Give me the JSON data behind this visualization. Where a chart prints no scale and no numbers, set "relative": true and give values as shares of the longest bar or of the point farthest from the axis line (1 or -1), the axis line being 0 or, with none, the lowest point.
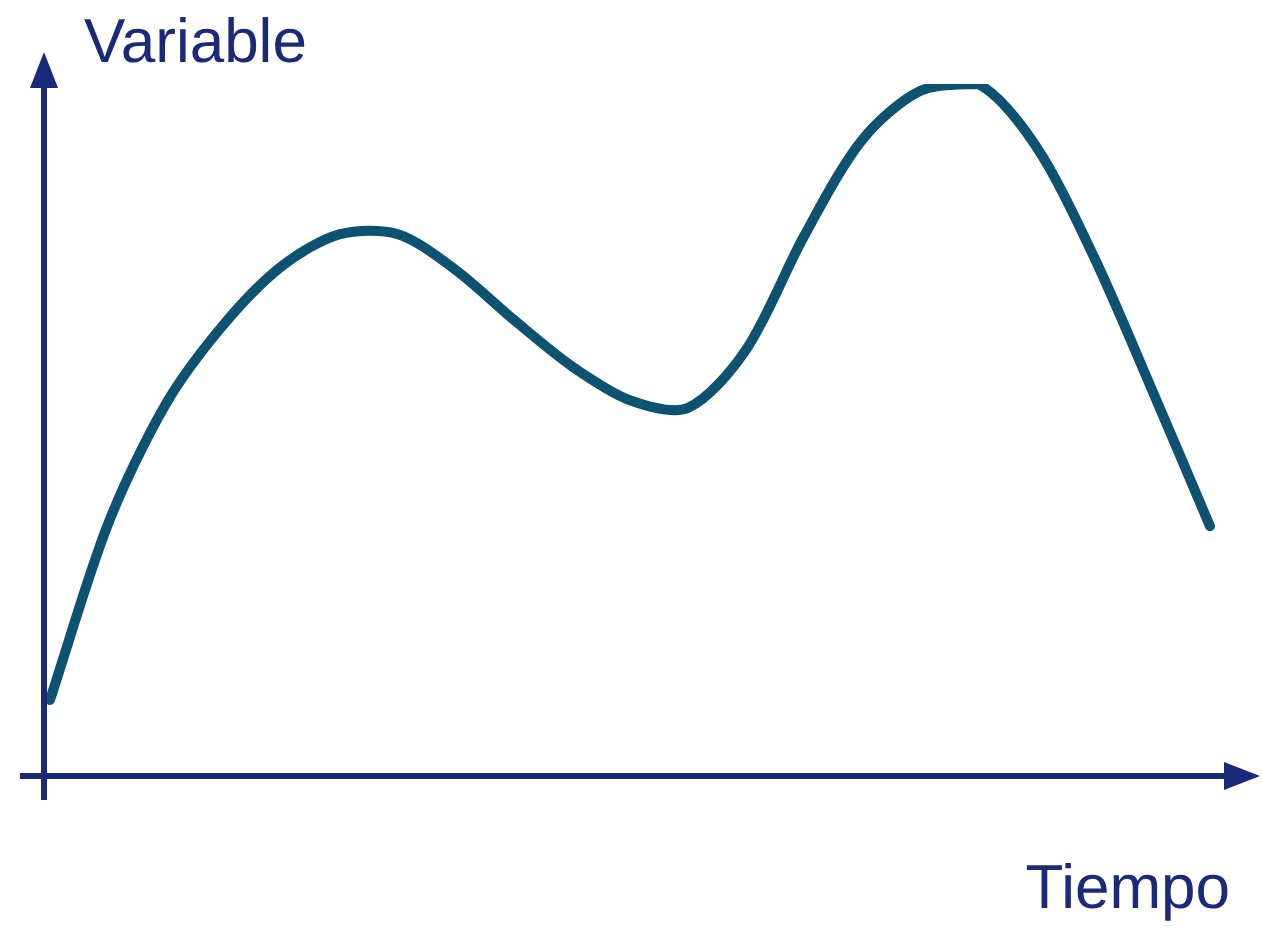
{
  "chart_data": {
    "type": "line",
    "relative": true,
    "xlabel": "Tiempo",
    "ylabel": "Variable",
    "categories": [
      null,
      null,
      null,
      null,
      null,
      null,
      null,
      null,
      null,
      null,
      null,
      null,
      null,
      null,
      null,
      null,
      null,
      null,
      null,
      null,
      null
    ],
    "series": [
      {
        "color": "#0e5272",
        "values": [
          0.11,
          0.364,
          0.538,
          0.653,
          0.737,
          0.783,
          0.783,
          0.731,
          0.659,
          0.592,
          0.543,
          0.532,
          0.616,
          0.78,
          0.919,
          0.99,
          1,
          0.91,
          0.75,
          0.558,
          0.361
        ]
      }
    ],
    "grid": false,
    "legend": false,
    "marker": "none",
    "line_style": "solid"
  }
}
